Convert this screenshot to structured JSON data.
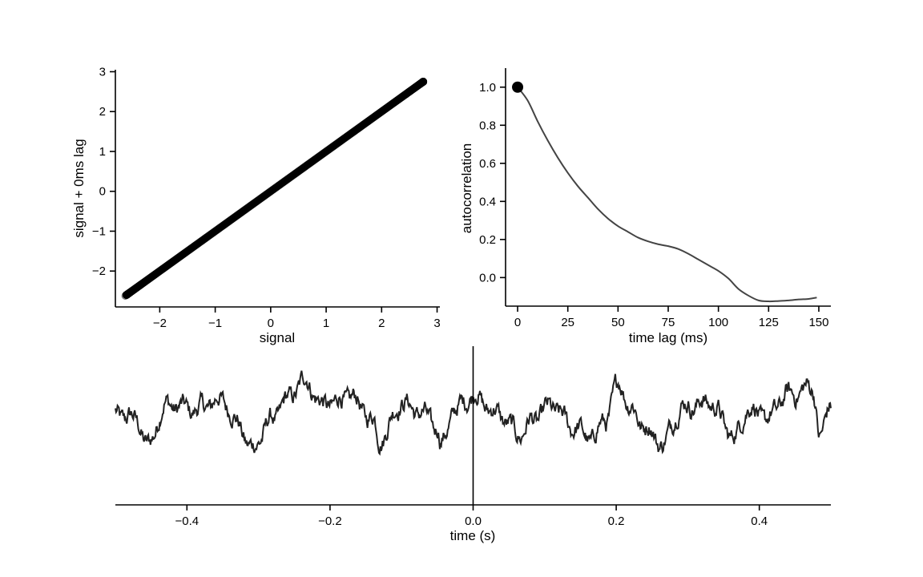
{
  "chart_data": [
    {
      "type": "scatter",
      "xlabel": "signal",
      "ylabel": "signal + 0ms lag",
      "xlim": [
        -2.8,
        3.05
      ],
      "ylim": [
        -2.9,
        3.05
      ],
      "xticks": [
        -2,
        -1,
        0,
        1,
        2,
        3
      ],
      "yticks": [
        -2,
        -1,
        0,
        1,
        2,
        3
      ],
      "xtick_labels": [
        "−2",
        "−1",
        "0",
        "1",
        "2",
        "3"
      ],
      "ytick_labels": [
        "−2",
        "−1",
        "0",
        "1",
        "2",
        "3"
      ],
      "point_color": "#000000",
      "point_opacity": 0.35,
      "x_range": [
        -2.6,
        2.75
      ],
      "relation": "y = x",
      "points": [
        [
          -2.62,
          -2.62
        ],
        [
          -2.58,
          -2.58
        ],
        [
          -2.47,
          -2.47
        ],
        [
          -2.42,
          -2.42
        ],
        [
          -2.35,
          -2.35
        ],
        [
          2.38,
          2.38
        ],
        [
          2.45,
          2.45
        ],
        [
          2.52,
          2.52
        ],
        [
          2.6,
          2.6
        ],
        [
          2.75,
          2.75
        ]
      ],
      "grid": false
    },
    {
      "type": "line",
      "xlabel": "time lag (ms)",
      "ylabel": "autocorrelation",
      "xlim": [
        -6,
        156
      ],
      "ylim": [
        -0.15,
        1.1
      ],
      "xticks": [
        0,
        25,
        50,
        75,
        100,
        125,
        150
      ],
      "yticks": [
        0.0,
        0.2,
        0.4,
        0.6,
        0.8,
        1.0
      ],
      "xtick_labels": [
        "0",
        "25",
        "50",
        "75",
        "100",
        "125",
        "150"
      ],
      "ytick_labels": [
        "0.0",
        "0.2",
        "0.4",
        "0.6",
        "0.8",
        "1.0"
      ],
      "line_color": "#444444",
      "marker": {
        "x": 0,
        "y": 1.0,
        "color": "#000000"
      },
      "x": [
        0,
        5,
        10,
        15,
        20,
        25,
        30,
        35,
        40,
        45,
        50,
        55,
        60,
        65,
        70,
        75,
        80,
        85,
        90,
        95,
        100,
        105,
        110,
        115,
        120,
        125,
        130,
        135,
        140,
        145,
        149
      ],
      "y": [
        1.0,
        0.93,
        0.82,
        0.72,
        0.63,
        0.55,
        0.48,
        0.42,
        0.36,
        0.31,
        0.27,
        0.24,
        0.21,
        0.19,
        0.175,
        0.165,
        0.15,
        0.125,
        0.095,
        0.065,
        0.035,
        -0.005,
        -0.06,
        -0.095,
        -0.12,
        -0.125,
        -0.123,
        -0.12,
        -0.115,
        -0.112,
        -0.105
      ],
      "grid": false
    },
    {
      "type": "line",
      "xlabel": "time (s)",
      "xlim": [
        -0.5,
        0.5
      ],
      "ylim": [
        -3.5,
        3.0
      ],
      "xticks": [
        -0.4,
        -0.2,
        0.0,
        0.2,
        0.4
      ],
      "xtick_labels": [
        "−0.4",
        "−0.2",
        "0.0",
        "0.2",
        "0.4"
      ],
      "vline_x": 0.0,
      "line_color": "#222222",
      "samples": 1000,
      "shape_x": [
        -0.5,
        -0.47,
        -0.455,
        -0.43,
        -0.39,
        -0.35,
        -0.33,
        -0.31,
        -0.28,
        -0.26,
        -0.235,
        -0.21,
        -0.17,
        -0.14,
        -0.13,
        -0.1,
        -0.075,
        -0.05,
        -0.045,
        -0.025,
        0.0,
        0.03,
        0.065,
        0.085,
        0.11,
        0.14,
        0.165,
        0.185,
        0.205,
        0.22,
        0.24,
        0.265,
        0.29,
        0.33,
        0.365,
        0.385,
        0.41,
        0.44,
        0.475,
        0.485,
        0.5
      ],
      "shape_y": [
        0.2,
        0.0,
        -1.1,
        0.6,
        0.4,
        0.8,
        -0.1,
        -1.2,
        0.0,
        0.8,
        1.6,
        0.6,
        0.9,
        0.0,
        -0.8,
        0.7,
        0.3,
        -0.3,
        -1.0,
        0.4,
        1.0,
        0.3,
        -0.6,
        0.0,
        0.5,
        -0.3,
        -0.8,
        0.0,
        1.5,
        0.5,
        -0.3,
        -1.0,
        0.5,
        0.7,
        -0.7,
        0.5,
        0.0,
        1.0,
        1.3,
        -0.8,
        0.7
      ],
      "grid": false
    }
  ]
}
